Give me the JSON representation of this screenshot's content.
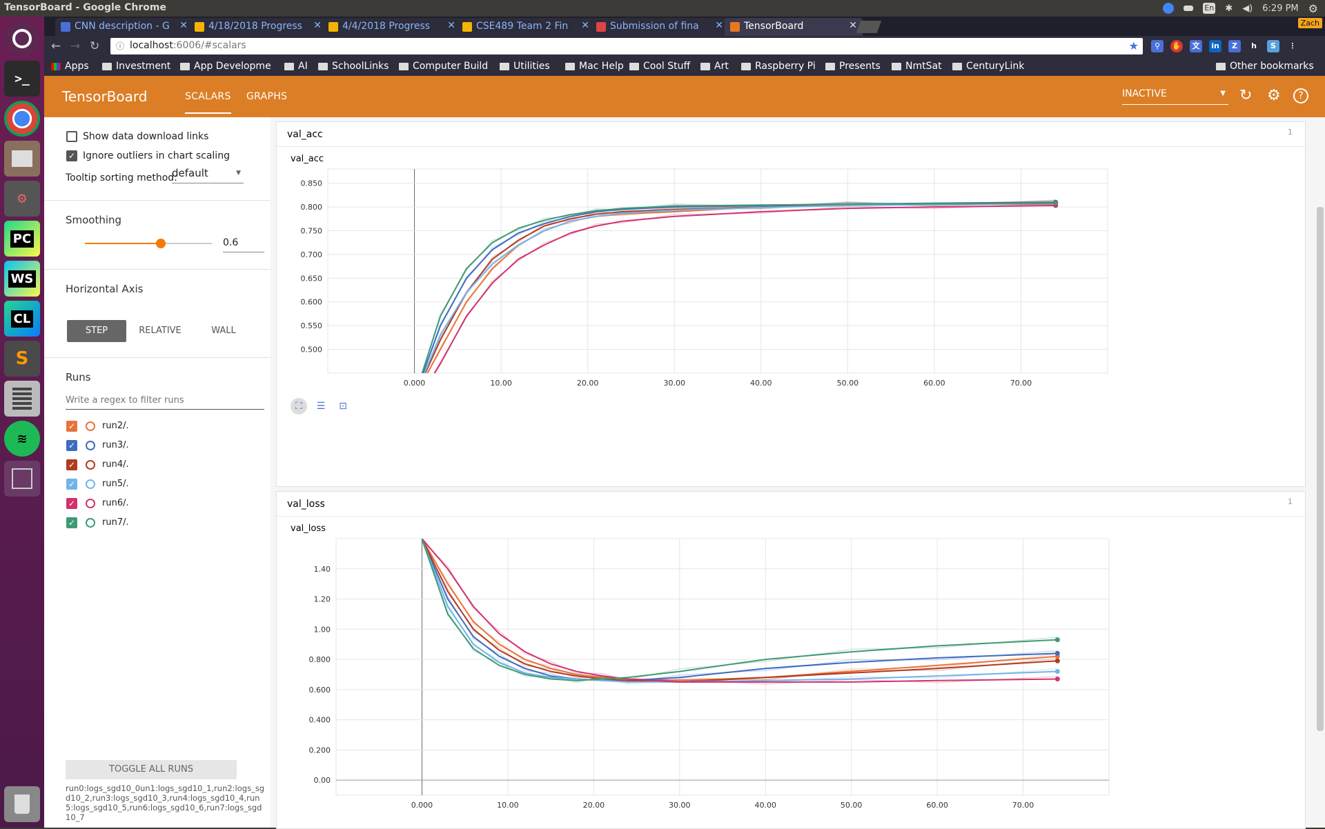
{
  "os": {
    "window_title": "TensorBoard - Google Chrome",
    "time": "6:29 PM",
    "lang": "En",
    "user": "Zach",
    "launcher": [
      "ubuntu-icon",
      "terminal-icon",
      "chrome-icon",
      "files-icon",
      "settings-icon",
      "pycharm-icon",
      "webstorm-icon",
      "clion-icon",
      "sublime-icon",
      "calculator-icon",
      "spotify-icon",
      "workspaces-icon",
      "trash-icon"
    ],
    "launcher_labels": {
      "pycharm": "PC",
      "webstorm": "WS",
      "clion": "CL",
      "sublime": "S"
    }
  },
  "browser": {
    "tabs": [
      {
        "label": "CNN description - G",
        "color": "#4a6fd8"
      },
      {
        "label": "4/18/2018 Progress",
        "color": "#f4b400"
      },
      {
        "label": "4/4/2018 Progress",
        "color": "#f4b400"
      },
      {
        "label": "CSE489 Team 2 Fin",
        "color": "#f4b400"
      },
      {
        "label": "Submission of fina",
        "color": "#d44"
      },
      {
        "label": "TensorBoard",
        "color": "#e87722"
      }
    ],
    "url_host": "localhost",
    "url_rest": ":6006/#scalars",
    "bookmarks": [
      "Apps",
      "Investment",
      "App Developme",
      "AI",
      "SchoolLinks",
      "Computer Build",
      "Utilities",
      "Mac Help",
      "Cool Stuff",
      "Art",
      "Raspberry Pi",
      "Presents",
      "NmtSat",
      "CenturyLink"
    ],
    "other_bookmarks": "Other bookmarks"
  },
  "header": {
    "brand": "TensorBoard",
    "tabs": [
      "SCALARS",
      "GRAPHS"
    ],
    "status": "INACTIVE"
  },
  "sidebar": {
    "show_download": "Show data download links",
    "ignore_outliers": "Ignore outliers in chart scaling",
    "tooltip_label": "Tooltip sorting method:",
    "tooltip_value": "default",
    "smoothing_label": "Smoothing",
    "smoothing_value": "0.6",
    "smoothing_level": 0.6,
    "haxis_label": "Horizontal Axis",
    "haxis_options": [
      "STEP",
      "RELATIVE",
      "WALL"
    ],
    "runs_label": "Runs",
    "runs_filter_placeholder": "Write a regex to filter runs",
    "runs": [
      {
        "name": "run2/.",
        "color": "#e8733a"
      },
      {
        "name": "run3/.",
        "color": "#3d6bc2"
      },
      {
        "name": "run4/.",
        "color": "#b23a1f"
      },
      {
        "name": "run5/.",
        "color": "#72b4ea"
      },
      {
        "name": "run6/.",
        "color": "#d1326f"
      },
      {
        "name": "run7/.",
        "color": "#3f9a74"
      }
    ],
    "toggle_all": "TOGGLE ALL RUNS",
    "run_info": "run0:logs_sgd10_0un1:logs_sgd10_1,run2:logs_sgd10_2,run3:logs_sgd10_3,run4:logs_sgd10_4,run5:logs_sgd10_5,run6:logs_sgd10_6,run7:logs_sgd10_7"
  },
  "cards": [
    {
      "title": "val_acc",
      "count": "1"
    },
    {
      "title": "val_loss",
      "count": "1"
    }
  ],
  "chart_data": [
    {
      "type": "line",
      "title": "val_acc",
      "xlim": [
        -10,
        80
      ],
      "ylim": [
        0.45,
        0.88
      ],
      "xticks": [
        "0.000",
        "10.00",
        "20.00",
        "30.00",
        "40.00",
        "50.00",
        "60.00",
        "70.00"
      ],
      "yticks": [
        "0.500",
        "0.550",
        "0.600",
        "0.650",
        "0.700",
        "0.750",
        "0.800",
        "0.850"
      ],
      "x": [
        0,
        3,
        6,
        9,
        12,
        15,
        18,
        21,
        24,
        30,
        40,
        50,
        60,
        74
      ],
      "series": [
        {
          "name": "run2/.",
          "color": "#e8733a",
          "values": [
            0.4,
            0.5,
            0.6,
            0.67,
            0.72,
            0.75,
            0.77,
            0.78,
            0.785,
            0.79,
            0.8,
            0.805,
            0.805,
            0.806
          ]
        },
        {
          "name": "run3/.",
          "color": "#3d6bc2",
          "values": [
            0.4,
            0.55,
            0.65,
            0.71,
            0.745,
            0.765,
            0.78,
            0.79,
            0.795,
            0.8,
            0.803,
            0.806,
            0.808,
            0.81
          ]
        },
        {
          "name": "run4/.",
          "color": "#b23a1f",
          "values": [
            0.4,
            0.52,
            0.62,
            0.69,
            0.73,
            0.76,
            0.775,
            0.785,
            0.79,
            0.795,
            0.8,
            0.804,
            0.807,
            0.809
          ]
        },
        {
          "name": "run5/.",
          "color": "#72b4ea",
          "values": [
            0.4,
            0.53,
            0.62,
            0.68,
            0.72,
            0.75,
            0.77,
            0.78,
            0.787,
            0.793,
            0.799,
            0.803,
            0.805,
            0.807
          ]
        },
        {
          "name": "run6/.",
          "color": "#d1326f",
          "values": [
            0.38,
            0.47,
            0.57,
            0.64,
            0.69,
            0.72,
            0.745,
            0.76,
            0.77,
            0.78,
            0.79,
            0.797,
            0.8,
            0.803
          ]
        },
        {
          "name": "run7/.",
          "color": "#3f9a74",
          "values": [
            0.4,
            0.57,
            0.67,
            0.725,
            0.755,
            0.772,
            0.784,
            0.792,
            0.797,
            0.802,
            0.804,
            0.806,
            0.807,
            0.808
          ]
        }
      ]
    },
    {
      "type": "line",
      "title": "val_loss",
      "xlim": [
        -10,
        80
      ],
      "ylim": [
        -0.1,
        1.6
      ],
      "xticks": [
        "0.000",
        "10.00",
        "20.00",
        "30.00",
        "40.00",
        "50.00",
        "60.00",
        "70.00"
      ],
      "yticks": [
        "0.00",
        "0.200",
        "0.400",
        "0.600",
        "0.800",
        "1.00",
        "1.20",
        "1.40"
      ],
      "x": [
        0,
        3,
        6,
        9,
        12,
        15,
        18,
        21,
        24,
        30,
        40,
        50,
        60,
        74
      ],
      "series": [
        {
          "name": "run2/.",
          "color": "#e8733a",
          "values": [
            1.6,
            1.3,
            1.05,
            0.9,
            0.8,
            0.74,
            0.7,
            0.68,
            0.67,
            0.66,
            0.68,
            0.72,
            0.76,
            0.82
          ]
        },
        {
          "name": "run3/.",
          "color": "#3d6bc2",
          "values": [
            1.6,
            1.2,
            0.95,
            0.82,
            0.74,
            0.69,
            0.67,
            0.66,
            0.66,
            0.68,
            0.74,
            0.78,
            0.81,
            0.84
          ]
        },
        {
          "name": "run4/.",
          "color": "#b23a1f",
          "values": [
            1.6,
            1.25,
            1.0,
            0.86,
            0.77,
            0.72,
            0.69,
            0.67,
            0.66,
            0.65,
            0.68,
            0.71,
            0.74,
            0.79
          ]
        },
        {
          "name": "run5/.",
          "color": "#72b4ea",
          "values": [
            1.6,
            1.15,
            0.9,
            0.78,
            0.71,
            0.68,
            0.67,
            0.66,
            0.65,
            0.65,
            0.66,
            0.67,
            0.69,
            0.72
          ]
        },
        {
          "name": "run6/.",
          "color": "#d1326f",
          "values": [
            1.6,
            1.4,
            1.15,
            0.97,
            0.85,
            0.77,
            0.72,
            0.69,
            0.67,
            0.65,
            0.65,
            0.65,
            0.66,
            0.67
          ]
        },
        {
          "name": "run7/.",
          "color": "#3f9a74",
          "values": [
            1.6,
            1.1,
            0.87,
            0.76,
            0.7,
            0.67,
            0.66,
            0.67,
            0.68,
            0.72,
            0.8,
            0.85,
            0.89,
            0.93
          ]
        }
      ]
    }
  ]
}
